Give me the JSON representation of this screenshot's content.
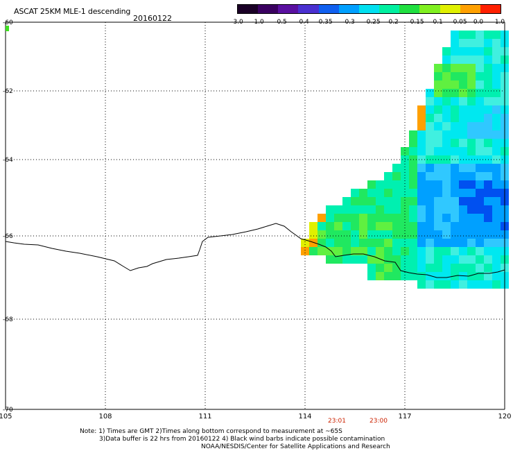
{
  "header": {
    "title": "ASCAT 25KM MLE-1 descending",
    "date": "20160122"
  },
  "colorbar": {
    "labels": [
      "-3.0",
      "-1.0",
      "-0.5",
      "-0.4",
      "-0.35",
      "-0.3",
      "-0.25",
      "-0.2",
      "-0.15",
      "-0.1",
      "-0.05",
      "0.0",
      "1.0"
    ],
    "colors": [
      "#1a0026",
      "#3a0060",
      "#5a10a0",
      "#4a30d0",
      "#1060f0",
      "#00a0ff",
      "#00e0f0",
      "#00f0a0",
      "#20e040",
      "#80f020",
      "#e0f000",
      "#ffa000",
      "#ff2000"
    ]
  },
  "map": {
    "lat_labels": [
      "-60",
      "-62",
      "-64",
      "-66",
      "-68",
      "-70"
    ],
    "lon_labels": [
      "105",
      "108",
      "111",
      "114",
      "117",
      "120"
    ],
    "time_labels": [
      "23:01",
      "23:00"
    ],
    "time_color": "#cc2200",
    "coast_color": "#000000",
    "grid_color": "#000000"
  },
  "notes": {
    "line1": "Note: 1) Times are GMT 2)Times along bottom correspond to measurement at ~65S",
    "line2": "3)Data buffer is 22 hrs from 20160122 4) Black wind barbs indicate possible contamination",
    "line3": "NOAA/NESDIS/Center for Satellite Applications and Research"
  }
}
